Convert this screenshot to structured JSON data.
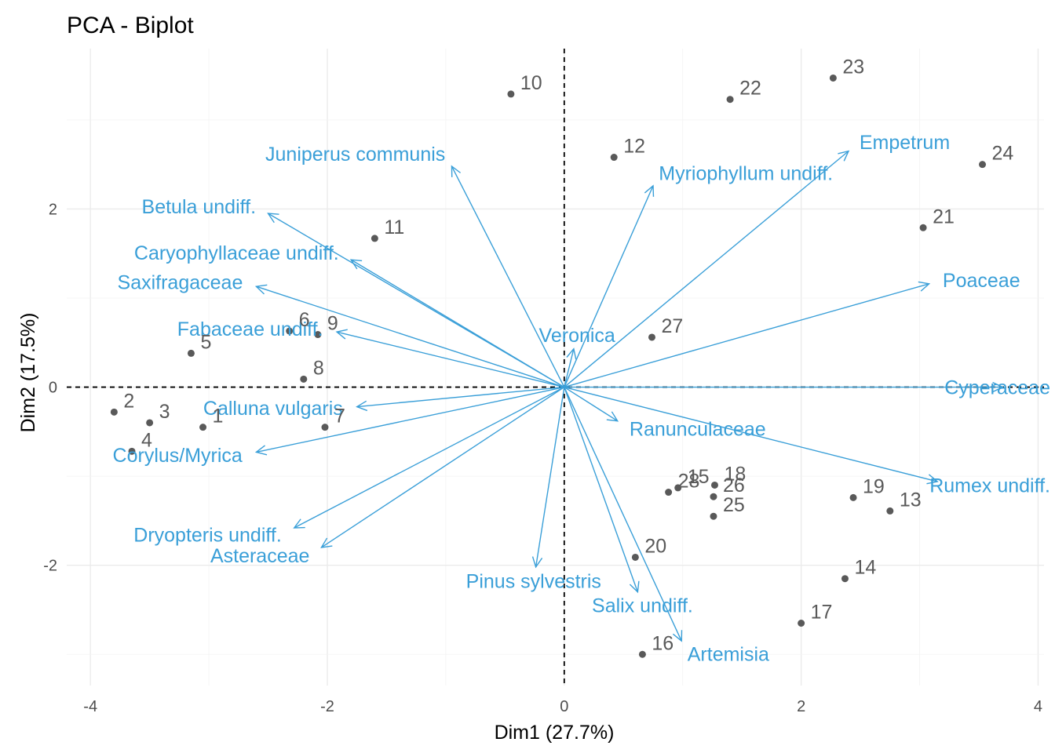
{
  "chart_data": {
    "type": "scatter",
    "title": "PCA - Biplot",
    "xlabel": "Dim1 (27.7%)",
    "ylabel": "Dim2 (17.5%)",
    "xlim": [
      -4.2,
      4.05
    ],
    "ylim": [
      -3.35,
      3.8
    ],
    "xticks": [
      -4,
      -2,
      0,
      2,
      4
    ],
    "yticks": [
      -2,
      0,
      2
    ],
    "xtick_labels": [
      "-4",
      "-2",
      "0",
      "2",
      "4"
    ],
    "ytick_labels": [
      "-2",
      "0",
      "2"
    ],
    "grid": true,
    "reference_lines": {
      "x": 0,
      "y": 0,
      "style": "dashed"
    },
    "colors": {
      "individuals": "#595959",
      "variables": "#3a9fd8"
    },
    "individuals": [
      {
        "label": "1",
        "x": -3.05,
        "y": -0.45
      },
      {
        "label": "2",
        "x": -3.8,
        "y": -0.28
      },
      {
        "label": "3",
        "x": -3.5,
        "y": -0.4
      },
      {
        "label": "4",
        "x": -3.65,
        "y": -0.72
      },
      {
        "label": "5",
        "x": -3.15,
        "y": 0.38
      },
      {
        "label": "6",
        "x": -2.32,
        "y": 0.63
      },
      {
        "label": "7",
        "x": -2.02,
        "y": -0.45
      },
      {
        "label": "8",
        "x": -2.2,
        "y": 0.09
      },
      {
        "label": "9",
        "x": -2.08,
        "y": 0.59
      },
      {
        "label": "10",
        "x": -0.45,
        "y": 3.29
      },
      {
        "label": "11",
        "x": -1.6,
        "y": 1.67
      },
      {
        "label": "12",
        "x": 0.42,
        "y": 2.58
      },
      {
        "label": "13",
        "x": 2.75,
        "y": -1.39
      },
      {
        "label": "14",
        "x": 2.37,
        "y": -2.15
      },
      {
        "label": "15",
        "x": 0.96,
        "y": -1.13
      },
      {
        "label": "16",
        "x": 0.66,
        "y": -3.0
      },
      {
        "label": "17",
        "x": 2.0,
        "y": -2.65
      },
      {
        "label": "18",
        "x": 1.27,
        "y": -1.1
      },
      {
        "label": "19",
        "x": 2.44,
        "y": -1.24
      },
      {
        "label": "20",
        "x": 0.6,
        "y": -1.91
      },
      {
        "label": "21",
        "x": 3.03,
        "y": 1.79
      },
      {
        "label": "22",
        "x": 1.4,
        "y": 3.23
      },
      {
        "label": "23",
        "x": 2.27,
        "y": 3.47
      },
      {
        "label": "24",
        "x": 3.53,
        "y": 2.5
      },
      {
        "label": "25",
        "x": 1.26,
        "y": -1.45
      },
      {
        "label": "26",
        "x": 1.26,
        "y": -1.23
      },
      {
        "label": "27",
        "x": 0.74,
        "y": 0.56
      },
      {
        "label": "28",
        "x": 0.88,
        "y": -1.18
      }
    ],
    "variables": [
      {
        "label": "Juniperus communis",
        "x": -0.95,
        "y": 2.48
      },
      {
        "label": "Betula undiff.",
        "x": -2.5,
        "y": 1.95
      },
      {
        "label": "Caryophyllaceae undiff.",
        "x": -1.8,
        "y": 1.43
      },
      {
        "label": "Saxifragaceae",
        "x": -2.6,
        "y": 1.13
      },
      {
        "label": "Fabaceae undiff.",
        "x": -1.92,
        "y": 0.62
      },
      {
        "label": "Calluna vulgaris",
        "x": -1.75,
        "y": -0.22
      },
      {
        "label": "Corylus/Myrica",
        "x": -2.6,
        "y": -0.73
      },
      {
        "label": "Dryopteris undiff.",
        "x": -2.28,
        "y": -1.58
      },
      {
        "label": "Asteraceae",
        "x": -2.05,
        "y": -1.8
      },
      {
        "label": "Pinus sylvestris",
        "x": -0.24,
        "y": -2.02
      },
      {
        "label": "Salix undiff.",
        "x": 0.62,
        "y": -2.3
      },
      {
        "label": "Artemisia",
        "x": 0.99,
        "y": -2.85
      },
      {
        "label": "Ranunculaceae",
        "x": 0.45,
        "y": -0.38
      },
      {
        "label": "Veronica",
        "x": 0.08,
        "y": 0.43
      },
      {
        "label": "Myriophyllum undiff.",
        "x": 0.75,
        "y": 2.26
      },
      {
        "label": "Empetrum",
        "x": 2.4,
        "y": 2.65
      },
      {
        "label": "Poaceae",
        "x": 3.08,
        "y": 1.16
      },
      {
        "label": "Cyperaceae",
        "x": 3.7,
        "y": 0.0
      },
      {
        "label": "Rumex undiff.",
        "x": 3.15,
        "y": -1.06
      }
    ]
  }
}
